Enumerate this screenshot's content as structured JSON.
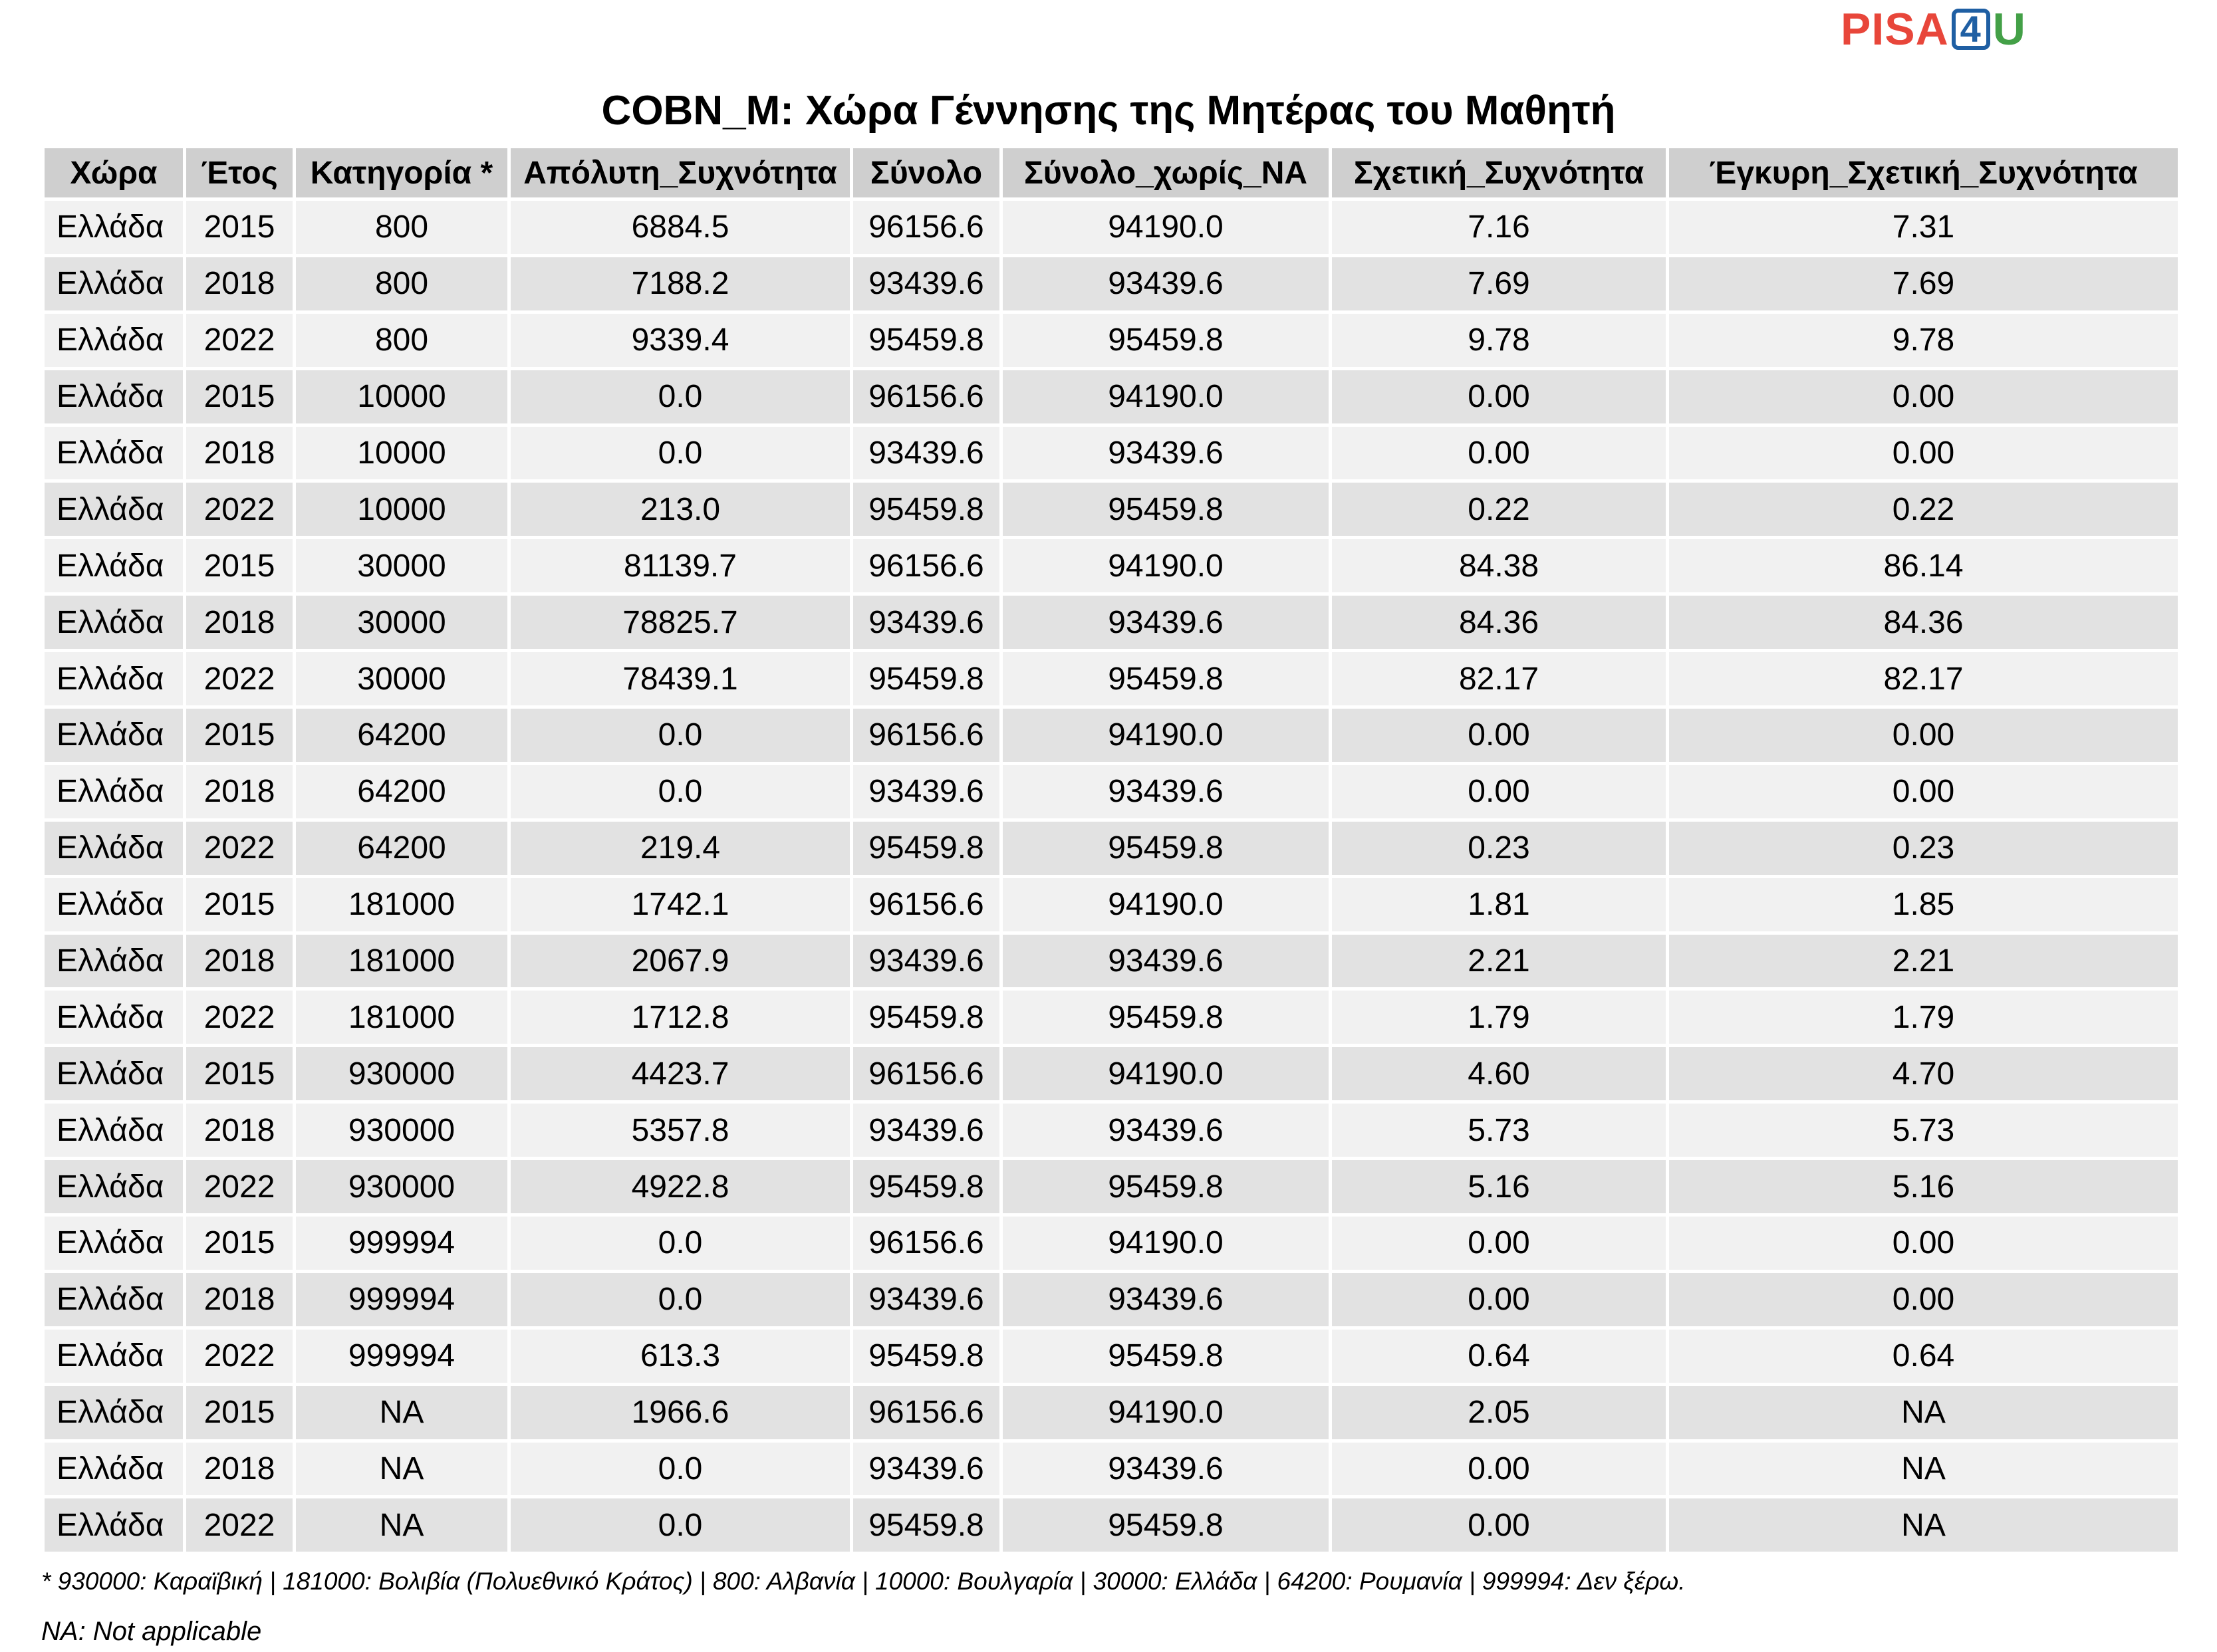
{
  "logo": {
    "part1": "PISA",
    "part2": "4",
    "part3": "U",
    "colors": {
      "pisa": "#e8463a",
      "four": "#1f5fa3",
      "u": "#43a047"
    }
  },
  "title": "COBN_M: Χώρα Γέννησης της Μητέρας του Μαθητή",
  "table": {
    "headers": [
      "Χώρα",
      "Έτος",
      "Κατηγορία *",
      "Απόλυτη_Συχνότητα",
      "Σύνολο",
      "Σύνολο_χωρίς_NA",
      "Σχετική_Συχνότητα",
      "Έγκυρη_Σχετική_Συχνότητα"
    ],
    "rows": [
      [
        "Ελλάδα",
        "2015",
        "800",
        "6884.5",
        "96156.6",
        "94190.0",
        "7.16",
        "7.31"
      ],
      [
        "Ελλάδα",
        "2018",
        "800",
        "7188.2",
        "93439.6",
        "93439.6",
        "7.69",
        "7.69"
      ],
      [
        "Ελλάδα",
        "2022",
        "800",
        "9339.4",
        "95459.8",
        "95459.8",
        "9.78",
        "9.78"
      ],
      [
        "Ελλάδα",
        "2015",
        "10000",
        "0.0",
        "96156.6",
        "94190.0",
        "0.00",
        "0.00"
      ],
      [
        "Ελλάδα",
        "2018",
        "10000",
        "0.0",
        "93439.6",
        "93439.6",
        "0.00",
        "0.00"
      ],
      [
        "Ελλάδα",
        "2022",
        "10000",
        "213.0",
        "95459.8",
        "95459.8",
        "0.22",
        "0.22"
      ],
      [
        "Ελλάδα",
        "2015",
        "30000",
        "81139.7",
        "96156.6",
        "94190.0",
        "84.38",
        "86.14"
      ],
      [
        "Ελλάδα",
        "2018",
        "30000",
        "78825.7",
        "93439.6",
        "93439.6",
        "84.36",
        "84.36"
      ],
      [
        "Ελλάδα",
        "2022",
        "30000",
        "78439.1",
        "95459.8",
        "95459.8",
        "82.17",
        "82.17"
      ],
      [
        "Ελλάδα",
        "2015",
        "64200",
        "0.0",
        "96156.6",
        "94190.0",
        "0.00",
        "0.00"
      ],
      [
        "Ελλάδα",
        "2018",
        "64200",
        "0.0",
        "93439.6",
        "93439.6",
        "0.00",
        "0.00"
      ],
      [
        "Ελλάδα",
        "2022",
        "64200",
        "219.4",
        "95459.8",
        "95459.8",
        "0.23",
        "0.23"
      ],
      [
        "Ελλάδα",
        "2015",
        "181000",
        "1742.1",
        "96156.6",
        "94190.0",
        "1.81",
        "1.85"
      ],
      [
        "Ελλάδα",
        "2018",
        "181000",
        "2067.9",
        "93439.6",
        "93439.6",
        "2.21",
        "2.21"
      ],
      [
        "Ελλάδα",
        "2022",
        "181000",
        "1712.8",
        "95459.8",
        "95459.8",
        "1.79",
        "1.79"
      ],
      [
        "Ελλάδα",
        "2015",
        "930000",
        "4423.7",
        "96156.6",
        "94190.0",
        "4.60",
        "4.70"
      ],
      [
        "Ελλάδα",
        "2018",
        "930000",
        "5357.8",
        "93439.6",
        "93439.6",
        "5.73",
        "5.73"
      ],
      [
        "Ελλάδα",
        "2022",
        "930000",
        "4922.8",
        "95459.8",
        "95459.8",
        "5.16",
        "5.16"
      ],
      [
        "Ελλάδα",
        "2015",
        "999994",
        "0.0",
        "96156.6",
        "94190.0",
        "0.00",
        "0.00"
      ],
      [
        "Ελλάδα",
        "2018",
        "999994",
        "0.0",
        "93439.6",
        "93439.6",
        "0.00",
        "0.00"
      ],
      [
        "Ελλάδα",
        "2022",
        "999994",
        "613.3",
        "95459.8",
        "95459.8",
        "0.64",
        "0.64"
      ],
      [
        "Ελλάδα",
        "2015",
        "NA",
        "1966.6",
        "96156.6",
        "94190.0",
        "2.05",
        "NA"
      ],
      [
        "Ελλάδα",
        "2018",
        "NA",
        "0.0",
        "93439.6",
        "93439.6",
        "0.00",
        "NA"
      ],
      [
        "Ελλάδα",
        "2022",
        "NA",
        "0.0",
        "95459.8",
        "95459.8",
        "0.00",
        "NA"
      ]
    ]
  },
  "footnote": "* 930000: Καραϊβική | 181000: Βολιβία (Πολυεθνικό Κράτος) | 800: Αλβανία | 10000: Βουλγαρία | 30000: Ελλάδα | 64200: Ρουμανία | 999994: Δεν ξέρω.",
  "na_note": "NA: Not applicable"
}
